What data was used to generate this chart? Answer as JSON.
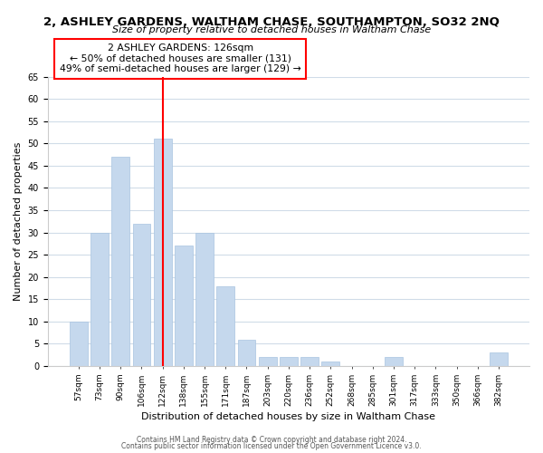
{
  "title": "2, ASHLEY GARDENS, WALTHAM CHASE, SOUTHAMPTON, SO32 2NQ",
  "subtitle": "Size of property relative to detached houses in Waltham Chase",
  "xlabel": "Distribution of detached houses by size in Waltham Chase",
  "ylabel": "Number of detached properties",
  "bar_labels": [
    "57sqm",
    "73sqm",
    "90sqm",
    "106sqm",
    "122sqm",
    "138sqm",
    "155sqm",
    "171sqm",
    "187sqm",
    "203sqm",
    "220sqm",
    "236sqm",
    "252sqm",
    "268sqm",
    "285sqm",
    "301sqm",
    "317sqm",
    "333sqm",
    "350sqm",
    "366sqm",
    "382sqm"
  ],
  "bar_heights": [
    10,
    30,
    47,
    32,
    51,
    27,
    30,
    18,
    6,
    2,
    2,
    2,
    1,
    0,
    0,
    2,
    0,
    0,
    0,
    0,
    3
  ],
  "bar_color": "#c5d8ed",
  "bar_edge_color": "#a8c4e0",
  "vline_x_index": 4,
  "vline_color": "red",
  "annotation_title": "2 ASHLEY GARDENS: 126sqm",
  "annotation_line1": "← 50% of detached houses are smaller (131)",
  "annotation_line2": "49% of semi-detached houses are larger (129) →",
  "ylim": [
    0,
    65
  ],
  "yticks": [
    0,
    5,
    10,
    15,
    20,
    25,
    30,
    35,
    40,
    45,
    50,
    55,
    60,
    65
  ],
  "footer1": "Contains HM Land Registry data © Crown copyright and database right 2024.",
  "footer2": "Contains public sector information licensed under the Open Government Licence v3.0.",
  "bg_color": "#ffffff",
  "grid_color": "#d0dce8"
}
